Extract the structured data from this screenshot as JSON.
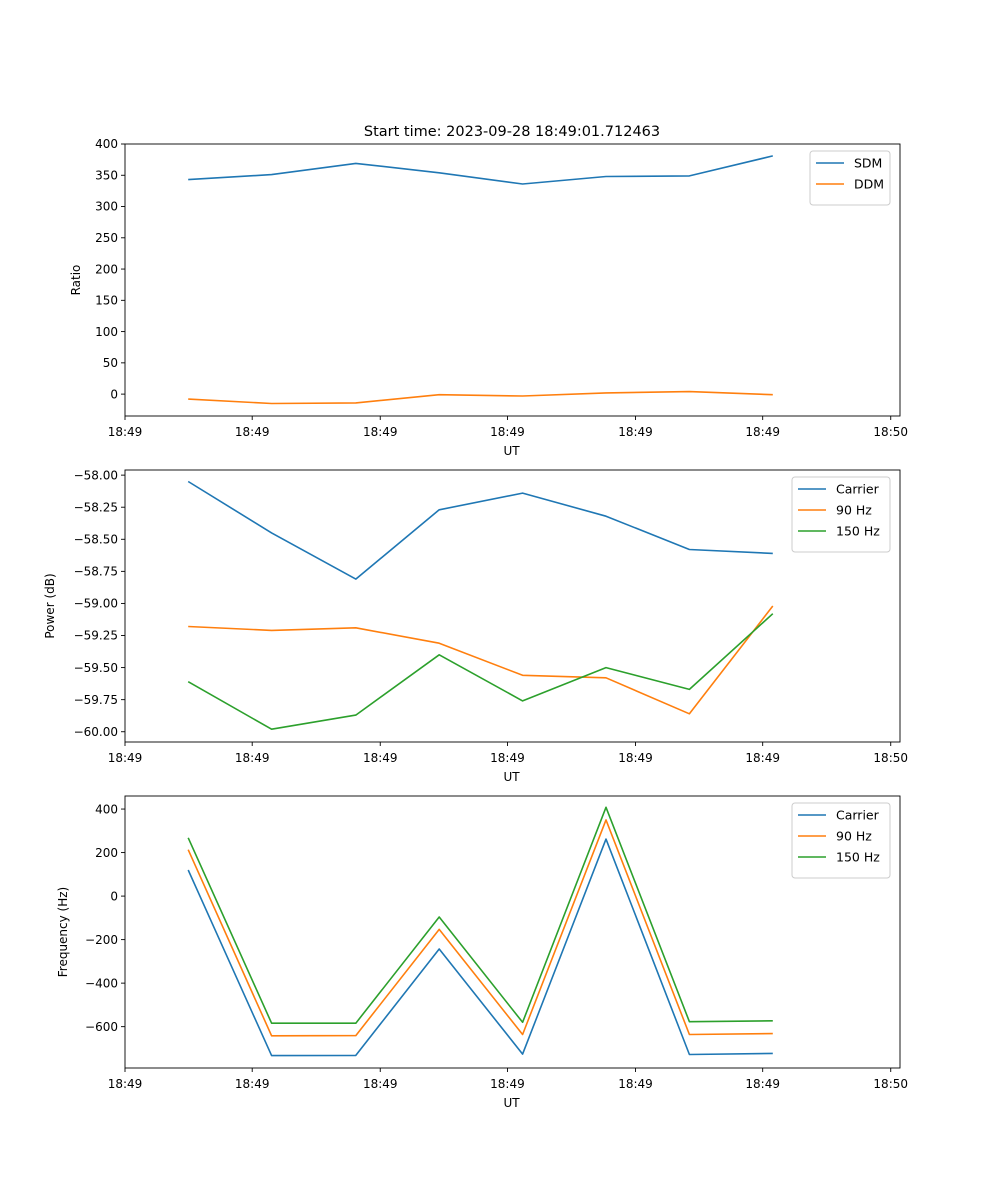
{
  "title": "Start time: 2023-09-28 18:49:01.712463",
  "colors": {
    "blue": "#1f77b4",
    "orange": "#ff7f0e",
    "green": "#2ca02c"
  },
  "chart_data": [
    {
      "type": "line",
      "xlabel": "UT",
      "ylabel": "Ratio",
      "xlim": [
        0,
        9.2
      ],
      "ylim": [
        -35,
        400
      ],
      "x_ticks": [
        0.0,
        1.51,
        3.03,
        4.54,
        6.06,
        7.57,
        9.09
      ],
      "x_tick_labels": [
        "18:49",
        "18:49",
        "18:49",
        "18:49",
        "18:49",
        "18:49",
        "18:50"
      ],
      "y_ticks": [
        0,
        50,
        100,
        150,
        200,
        250,
        300,
        350,
        400
      ],
      "y_tick_labels": [
        "0",
        "50",
        "100",
        "150",
        "200",
        "250",
        "300",
        "350",
        "400"
      ],
      "legend": "top-right",
      "x": [
        0.75,
        1.74,
        2.74,
        3.73,
        4.72,
        5.71,
        6.7,
        7.69
      ],
      "series": [
        {
          "name": "SDM",
          "color": "#1f77b4",
          "values": [
            343,
            351,
            369,
            354,
            336,
            348,
            349,
            381
          ]
        },
        {
          "name": "DDM",
          "color": "#ff7f0e",
          "values": [
            -8,
            -15,
            -14,
            -1,
            -3,
            2,
            4,
            -1
          ]
        }
      ]
    },
    {
      "type": "line",
      "xlabel": "UT",
      "ylabel": "Power (dB)",
      "xlim": [
        0,
        9.2
      ],
      "ylim": [
        -60.08,
        -57.96
      ],
      "x_ticks": [
        0.0,
        1.51,
        3.03,
        4.54,
        6.06,
        7.57,
        9.09
      ],
      "x_tick_labels": [
        "18:49",
        "18:49",
        "18:49",
        "18:49",
        "18:49",
        "18:49",
        "18:50"
      ],
      "y_ticks": [
        -58.0,
        -58.25,
        -58.5,
        -58.75,
        -59.0,
        -59.25,
        -59.5,
        -59.75,
        -60.0
      ],
      "y_tick_labels": [
        "−58.00",
        "−58.25",
        "−58.50",
        "−58.75",
        "−59.00",
        "−59.25",
        "−59.50",
        "−59.75",
        "−60.00"
      ],
      "legend": "top-right",
      "x": [
        0.75,
        1.74,
        2.74,
        3.73,
        4.72,
        5.71,
        6.7,
        7.69
      ],
      "series": [
        {
          "name": "Carrier",
          "color": "#1f77b4",
          "values": [
            -58.05,
            -58.45,
            -58.81,
            -58.27,
            -58.14,
            -58.32,
            -58.58,
            -58.61
          ]
        },
        {
          "name": "90 Hz",
          "color": "#ff7f0e",
          "values": [
            -59.18,
            -59.21,
            -59.19,
            -59.31,
            -59.56,
            -59.58,
            -59.86,
            -59.02
          ]
        },
        {
          "name": "150 Hz",
          "color": "#2ca02c",
          "values": [
            -59.61,
            -59.98,
            -59.87,
            -59.4,
            -59.76,
            -59.5,
            -59.67,
            -59.08
          ]
        }
      ]
    },
    {
      "type": "line",
      "xlabel": "UT",
      "ylabel": "Frequency (Hz)",
      "xlim": [
        0,
        9.2
      ],
      "ylim": [
        -790,
        460
      ],
      "x_ticks": [
        0.0,
        1.51,
        3.03,
        4.54,
        6.06,
        7.57,
        9.09
      ],
      "x_tick_labels": [
        "18:49",
        "18:49",
        "18:49",
        "18:49",
        "18:49",
        "18:49",
        "18:50"
      ],
      "y_ticks": [
        400,
        200,
        0,
        -200,
        -400,
        -600
      ],
      "y_tick_labels": [
        "400",
        "200",
        "0",
        "−200",
        "−400",
        "−600"
      ],
      "legend": "top-right",
      "x": [
        0.75,
        1.74,
        2.74,
        3.73,
        4.72,
        5.71,
        6.7,
        7.69
      ],
      "series": [
        {
          "name": "Carrier",
          "color": "#1f77b4",
          "values": [
            120,
            -733,
            -732,
            -243,
            -726,
            262,
            -728,
            -723
          ]
        },
        {
          "name": "90 Hz",
          "color": "#ff7f0e",
          "values": [
            213,
            -642,
            -641,
            -153,
            -636,
            350,
            -636,
            -632
          ]
        },
        {
          "name": "150 Hz",
          "color": "#2ca02c",
          "values": [
            268,
            -584,
            -584,
            -96,
            -580,
            408,
            -577,
            -573
          ]
        }
      ]
    }
  ]
}
